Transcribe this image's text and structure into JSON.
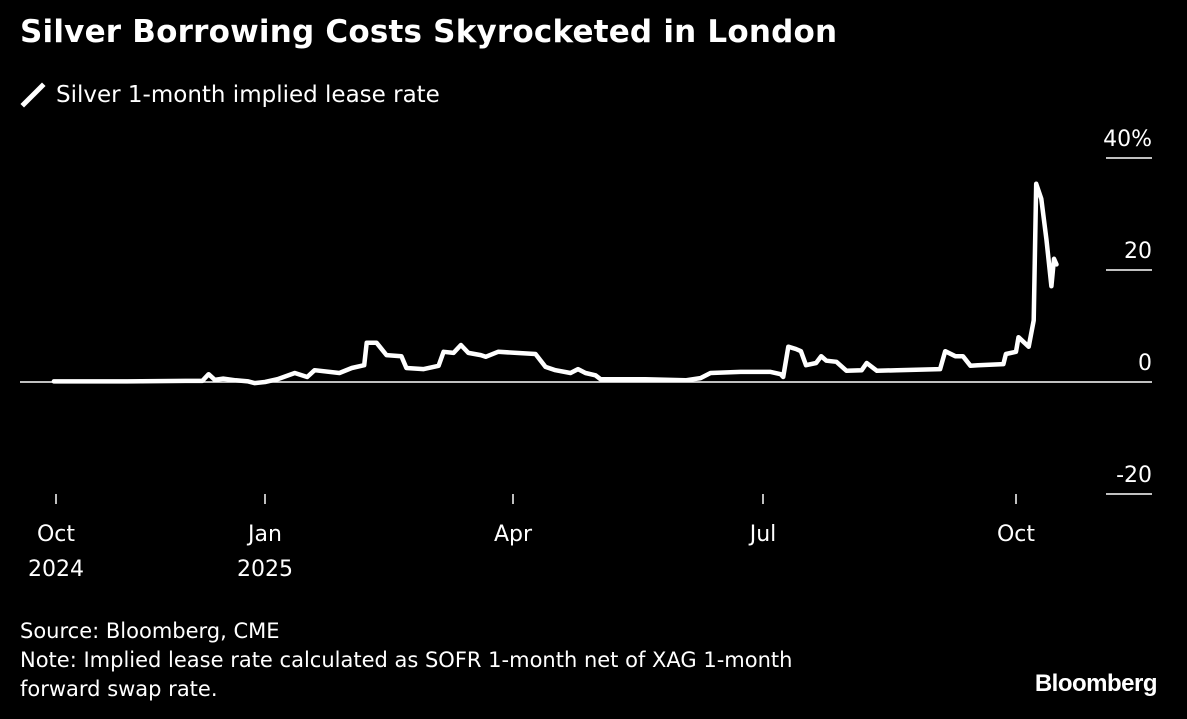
{
  "header": {
    "title": "Silver Borrowing Costs Skyrocketed in London",
    "legend_label": "Silver 1-month implied lease rate"
  },
  "footer": {
    "source": "Source: Bloomberg, CME",
    "note_line1": "Note: Implied lease rate calculated as SOFR 1-month net of XAG 1-month",
    "note_line2": "forward swap rate.",
    "brand": "Bloomberg"
  },
  "colors": {
    "background": "#000000",
    "line": "#ffffff",
    "text": "#ffffff"
  },
  "chart_data": {
    "type": "line",
    "title": "Silver Borrowing Costs Skyrocketed in London",
    "xlabel": "",
    "ylabel": "",
    "y_unit": "%",
    "ylim": [
      -20,
      40
    ],
    "yticks": [
      40,
      20,
      0,
      -20
    ],
    "ytick_labels": [
      "40%",
      "20",
      "0",
      "-20"
    ],
    "xticks": [
      {
        "label": "Oct",
        "sub": "2024",
        "t": 0
      },
      {
        "label": "Jan",
        "sub": "2025",
        "t": 1
      },
      {
        "label": "Apr",
        "sub": "",
        "t": 2
      },
      {
        "label": "Jul",
        "sub": "",
        "t": 3
      },
      {
        "label": "Oct",
        "sub": "",
        "t": 4
      }
    ],
    "x_unit": "quarters since Oct 2024",
    "legend": "top-left",
    "grid": false,
    "series": [
      {
        "name": "Silver 1-month implied lease rate",
        "points": [
          [
            -0.01,
            0.1
          ],
          [
            0.3,
            0.1
          ],
          [
            0.62,
            0.2
          ],
          [
            0.7,
            0.2
          ],
          [
            0.73,
            1.4
          ],
          [
            0.76,
            0.4
          ],
          [
            0.8,
            0.6
          ],
          [
            0.86,
            0.3
          ],
          [
            0.92,
            0.1
          ],
          [
            0.95,
            -0.2
          ],
          [
            1.0,
            0.0
          ],
          [
            1.05,
            0.5
          ],
          [
            1.12,
            1.6
          ],
          [
            1.17,
            0.9
          ],
          [
            1.2,
            2.1
          ],
          [
            1.3,
            1.6
          ],
          [
            1.35,
            2.5
          ],
          [
            1.4,
            3.0
          ],
          [
            1.41,
            7.0
          ],
          [
            1.45,
            7.0
          ],
          [
            1.49,
            4.8
          ],
          [
            1.55,
            4.6
          ],
          [
            1.57,
            2.5
          ],
          [
            1.64,
            2.3
          ],
          [
            1.7,
            2.9
          ],
          [
            1.72,
            5.4
          ],
          [
            1.76,
            5.2
          ],
          [
            1.79,
            6.6
          ],
          [
            1.82,
            5.2
          ],
          [
            1.87,
            4.8
          ],
          [
            1.89,
            4.5
          ],
          [
            1.94,
            5.4
          ],
          [
            2.09,
            5.0
          ],
          [
            2.13,
            2.7
          ],
          [
            2.17,
            2.1
          ],
          [
            2.23,
            1.6
          ],
          [
            2.26,
            2.3
          ],
          [
            2.29,
            1.6
          ],
          [
            2.33,
            1.2
          ],
          [
            2.35,
            0.5
          ],
          [
            2.53,
            0.5
          ],
          [
            2.69,
            0.3
          ],
          [
            2.75,
            0.7
          ],
          [
            2.79,
            1.6
          ],
          [
            2.91,
            1.8
          ],
          [
            3.03,
            1.8
          ],
          [
            3.07,
            1.4
          ],
          [
            3.08,
            0.9
          ],
          [
            3.1,
            6.3
          ],
          [
            3.13,
            5.9
          ],
          [
            3.15,
            5.5
          ],
          [
            3.17,
            3.0
          ],
          [
            3.21,
            3.4
          ],
          [
            3.23,
            4.6
          ],
          [
            3.25,
            3.8
          ],
          [
            3.29,
            3.6
          ],
          [
            3.33,
            2.0
          ],
          [
            3.39,
            2.1
          ],
          [
            3.41,
            3.4
          ],
          [
            3.45,
            2.0
          ],
          [
            3.53,
            2.1
          ],
          [
            3.7,
            2.3
          ],
          [
            3.72,
            5.5
          ],
          [
            3.76,
            4.6
          ],
          [
            3.79,
            4.6
          ],
          [
            3.82,
            2.9
          ],
          [
            3.85,
            3.0
          ],
          [
            3.95,
            3.2
          ],
          [
            3.96,
            5.0
          ],
          [
            4.0,
            5.4
          ],
          [
            4.01,
            8.0
          ],
          [
            4.05,
            6.3
          ],
          [
            4.07,
            11.0
          ],
          [
            4.08,
            35.4
          ],
          [
            4.1,
            32.7
          ],
          [
            4.12,
            25.5
          ],
          [
            4.14,
            17.1
          ],
          [
            4.15,
            22.0
          ],
          [
            4.16,
            21.0
          ]
        ]
      }
    ]
  }
}
